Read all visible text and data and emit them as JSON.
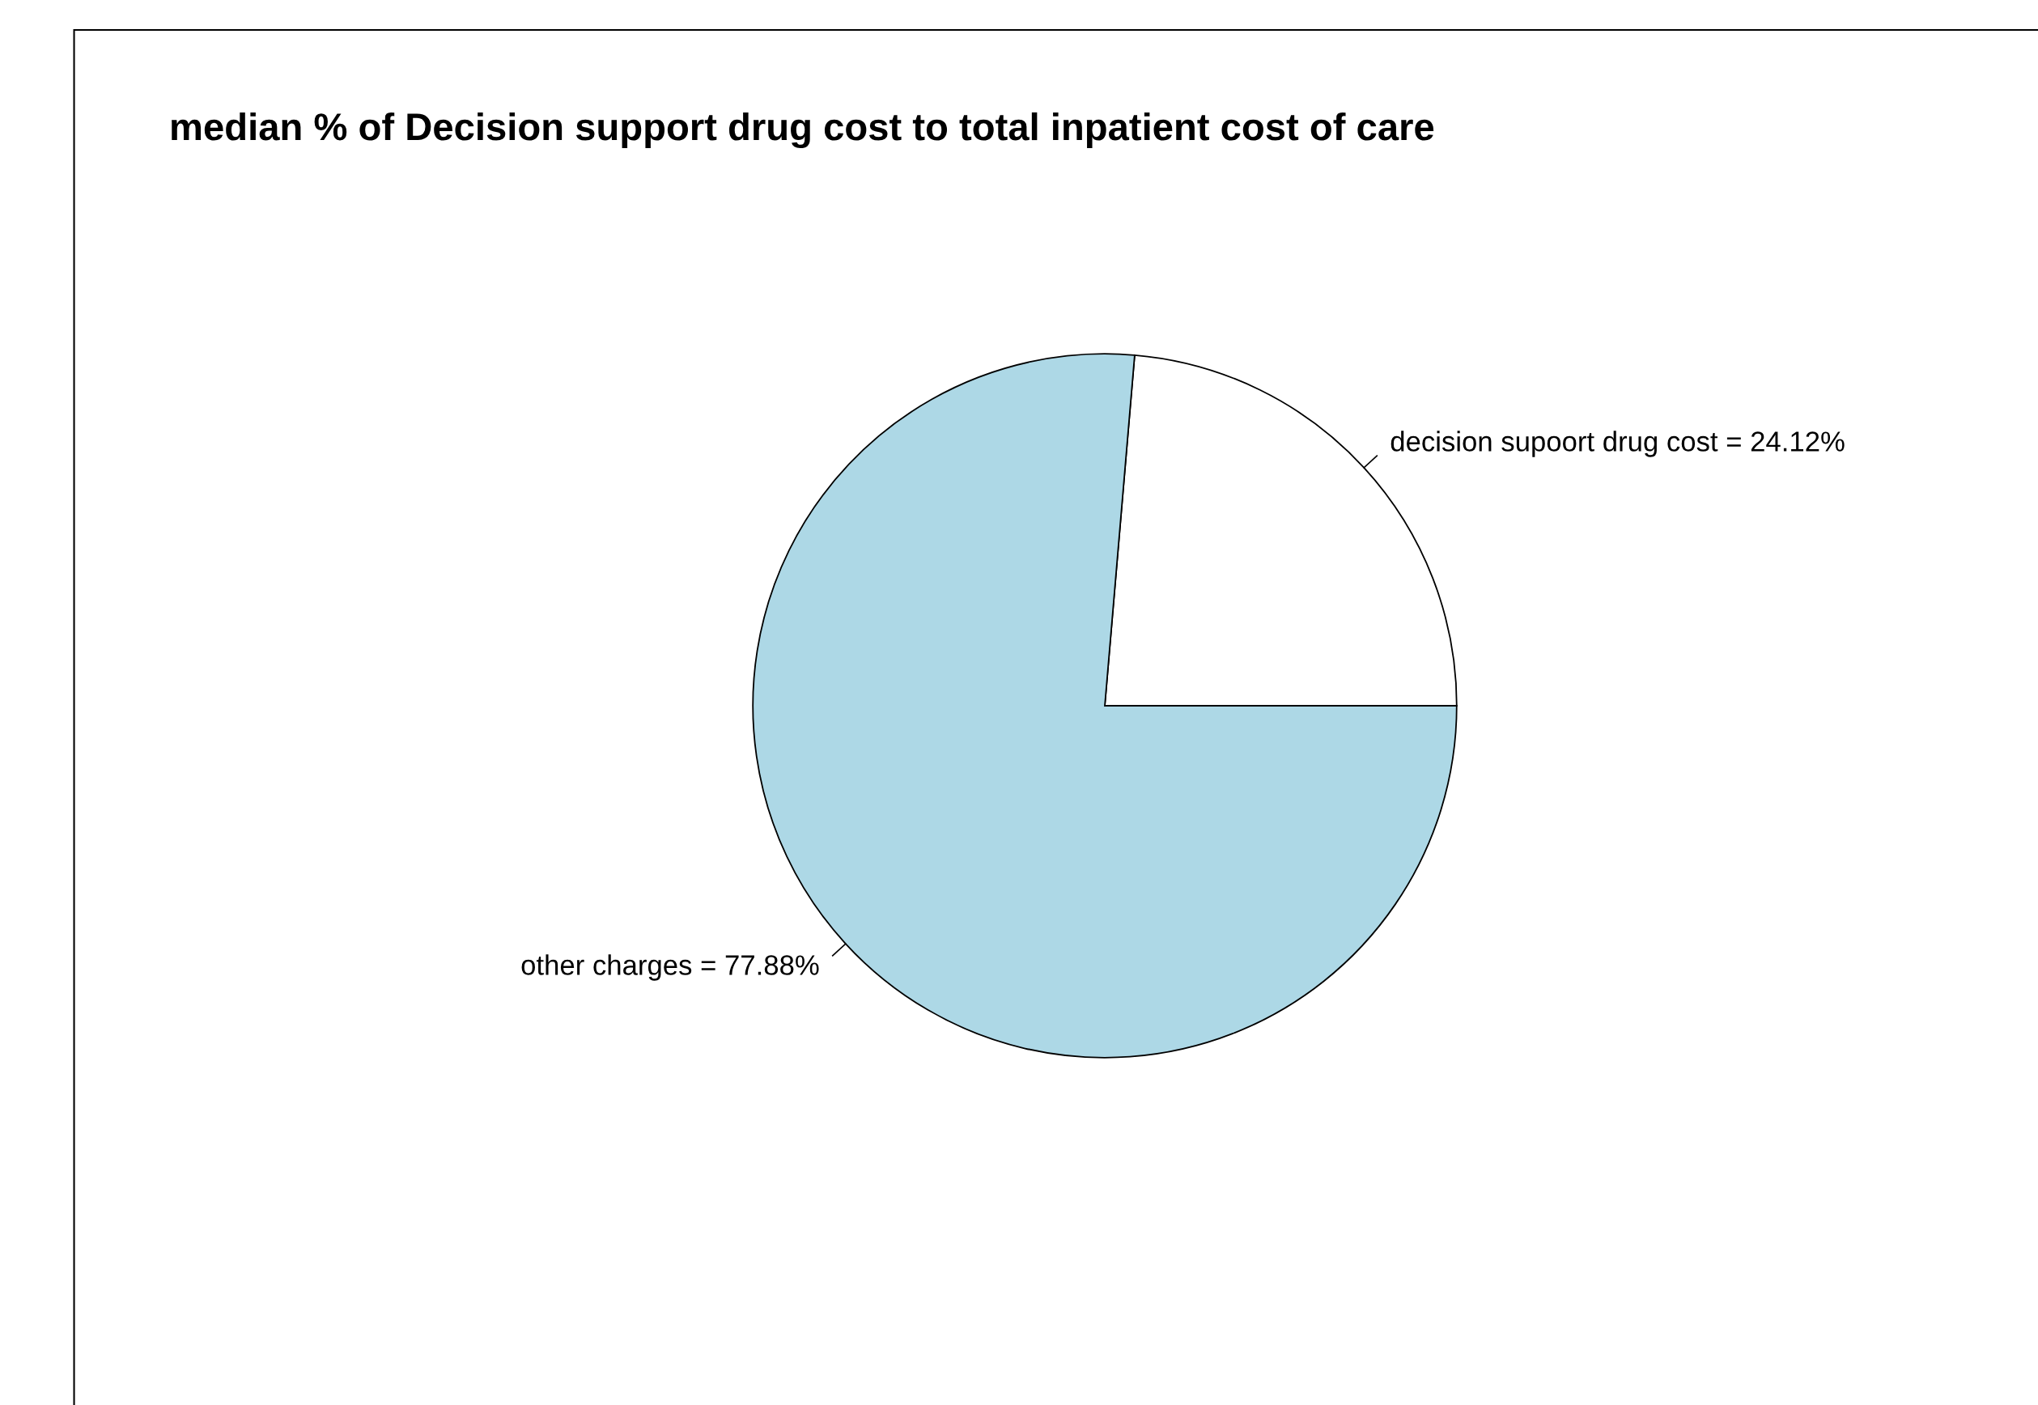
{
  "chart_data": {
    "type": "pie",
    "title": "median % of Decision support drug cost to total inpatient cost of care",
    "categories": [
      "decision supoort drug cost = 24.12%",
      "other charges = 77.88%"
    ],
    "values": [
      24.12,
      77.88
    ],
    "colors": [
      "#ffffff",
      "#add8e6"
    ]
  }
}
